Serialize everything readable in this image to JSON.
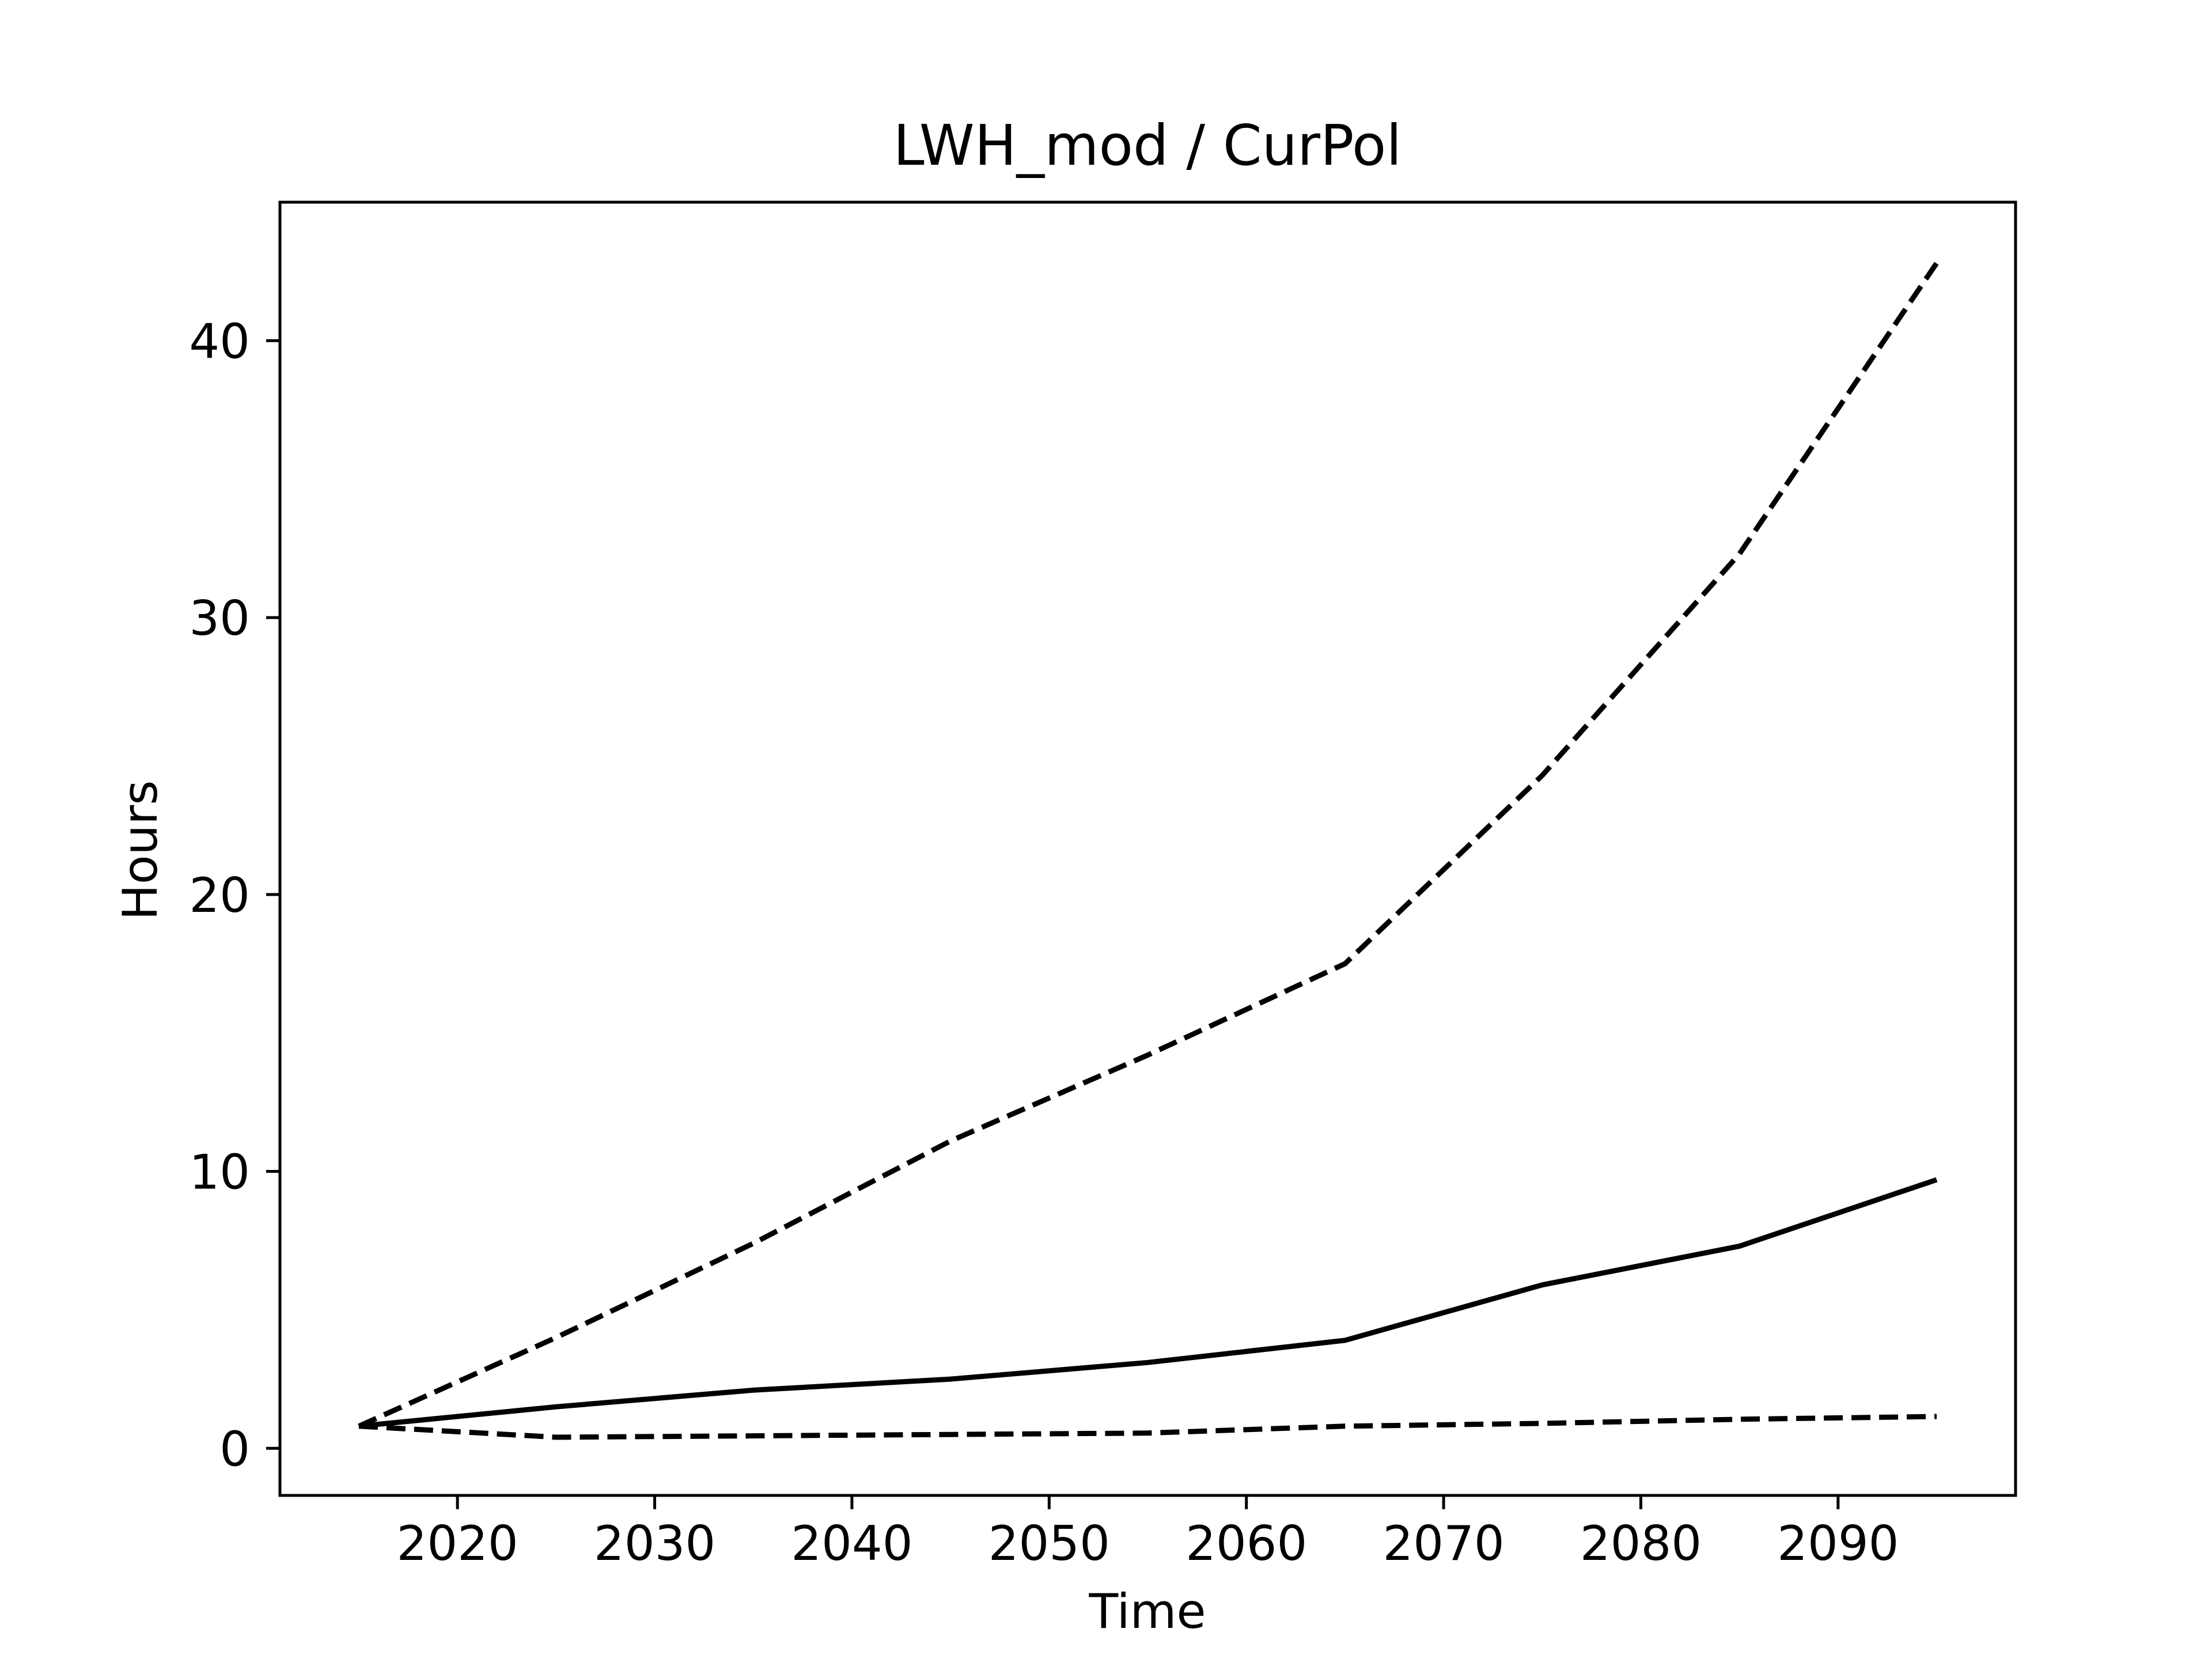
{
  "chart_data": {
    "type": "line",
    "title": "LWH_mod / CurPol",
    "xlabel": "Time",
    "ylabel": "Hours",
    "xlim": [
      2011,
      2099
    ],
    "ylim": [
      -1.7,
      45
    ],
    "grid": false,
    "x_ticks": [
      2020,
      2030,
      2040,
      2050,
      2060,
      2070,
      2080,
      2090
    ],
    "y_ticks": [
      0,
      10,
      20,
      30,
      40
    ],
    "x": [
      2015,
      2025,
      2035,
      2045,
      2055,
      2065,
      2075,
      2085,
      2095
    ],
    "series": [
      {
        "style": "solid",
        "color": "#000000",
        "values": [
          0.8,
          1.5,
          2.1,
          2.5,
          3.1,
          3.9,
          5.9,
          7.3,
          9.7
        ]
      },
      {
        "style": "dashed",
        "color": "#000000",
        "values": [
          0.8,
          4.0,
          7.4,
          11.1,
          14.2,
          17.5,
          24.3,
          32.3,
          42.8
        ]
      },
      {
        "style": "dashed",
        "color": "#000000",
        "values": [
          0.8,
          0.4,
          0.45,
          0.5,
          0.55,
          0.8,
          0.9,
          1.05,
          1.15
        ]
      }
    ]
  }
}
